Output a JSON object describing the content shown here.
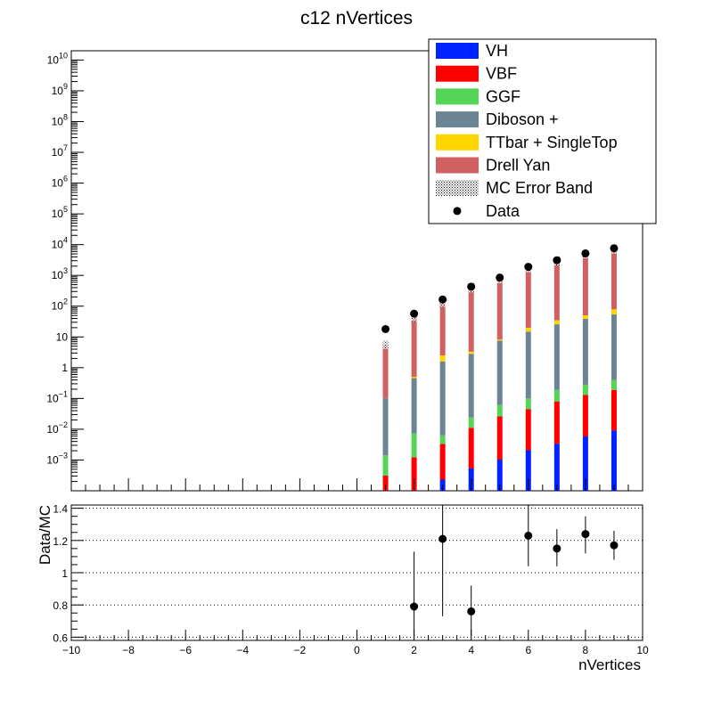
{
  "chart_data": [
    {
      "type": "bar",
      "stacked": true,
      "title": "c12 nVertices",
      "xlabel": "",
      "ylabel": "",
      "log_scale_y": true,
      "xlim": [
        -10,
        10
      ],
      "ylim": [
        0.0001,
        20000000000
      ],
      "x_ticks": [
        "−10",
        "−8",
        "−6",
        "−4",
        "−2",
        "0",
        "2",
        "4",
        "6",
        "8",
        "10"
      ],
      "y_ticks": [
        {
          "value": 0.001,
          "base": "10",
          "exp": "−3"
        },
        {
          "value": 0.01,
          "base": "10",
          "exp": "−2"
        },
        {
          "value": 0.1,
          "base": "10",
          "exp": "−1"
        },
        {
          "value": 1,
          "base": "1",
          "exp": ""
        },
        {
          "value": 10,
          "base": "10",
          "exp": ""
        },
        {
          "value": 100,
          "base": "10",
          "exp": "2"
        },
        {
          "value": 1000,
          "base": "10",
          "exp": "3"
        },
        {
          "value": 10000,
          "base": "10",
          "exp": "4"
        },
        {
          "value": 100000,
          "base": "10",
          "exp": "5"
        },
        {
          "value": 1000000,
          "base": "10",
          "exp": "6"
        },
        {
          "value": 10000000,
          "base": "10",
          "exp": "7"
        },
        {
          "value": 100000000,
          "base": "10",
          "exp": "8"
        },
        {
          "value": 1000000000,
          "base": "10",
          "exp": "9"
        },
        {
          "value": 10000000000,
          "base": "10",
          "exp": "10"
        }
      ],
      "x": [
        1,
        2,
        3,
        4,
        5,
        6,
        7,
        8,
        9
      ],
      "series": [
        {
          "name": "VH",
          "color": "#0022ff",
          "values": [
            1e-05,
            2e-05,
            0.00023,
            0.00053,
            0.00103,
            0.00208,
            0.00339,
            0.00582,
            0.00916
          ]
        },
        {
          "name": "VBF",
          "color": "#ff0000",
          "values": [
            0.0003,
            0.0012,
            0.0031,
            0.0105,
            0.0253,
            0.0429,
            0.0766,
            0.1242,
            0.1808
          ]
        },
        {
          "name": "GGF",
          "color": "#55d555",
          "values": [
            0.0011,
            0.006,
            0.003,
            0.013,
            0.035,
            0.055,
            0.11,
            0.15,
            0.21
          ]
        },
        {
          "name": "Diboson +",
          "color": "#6b8595",
          "values": [
            0.1,
            0.45,
            1.6,
            2.8,
            7.5,
            14.8,
            25.5,
            38.3,
            53.4
          ]
        },
        {
          "name": "TTbar + SingleTop",
          "color": "#ffd500",
          "values": [
            0.0,
            0.05,
            0.9,
            0.5,
            0.7,
            5.0,
            9.0,
            12.0,
            25.0
          ]
        },
        {
          "name": "Drell Yan",
          "color": "#d16060",
          "values": [
            5.5,
            45,
            130,
            390,
            760,
            1730,
            2900,
            4900,
            7000
          ]
        }
      ],
      "data": {
        "name": "Data",
        "values": [
          18,
          57,
          165,
          430,
          850,
          1900,
          3100,
          5200,
          7600
        ]
      },
      "error_band": {
        "name": "MC Error Band"
      },
      "legend_position": "top-right"
    },
    {
      "type": "scatter",
      "title": "",
      "xlabel": "nVertices",
      "ylabel": "Data/MC",
      "xlim": [
        -10,
        10
      ],
      "ylim": [
        0.58,
        1.42
      ],
      "x_ticks": [
        "−10",
        "−8",
        "−6",
        "−4",
        "−2",
        "0",
        "2",
        "4",
        "6",
        "8",
        "10"
      ],
      "y_ticks": [
        "0.6",
        "0.8",
        "1",
        "1.2",
        "1.4"
      ],
      "grid": "horizontal",
      "points": [
        {
          "x": 2,
          "y": 0.79,
          "err_low": 0.2,
          "err_high": 0.34
        },
        {
          "x": 3,
          "y": 1.21,
          "err_low": 0.48,
          "err_high": 0.35
        },
        {
          "x": 4,
          "y": 0.76,
          "err_low": 0.15,
          "err_high": 0.16
        },
        {
          "x": 6,
          "y": 1.23,
          "err_low": 0.19,
          "err_high": 0.2
        },
        {
          "x": 7,
          "y": 1.15,
          "err_low": 0.11,
          "err_high": 0.12
        },
        {
          "x": 8,
          "y": 1.24,
          "err_low": 0.12,
          "err_high": 0.11
        },
        {
          "x": 9,
          "y": 1.17,
          "err_low": 0.09,
          "err_high": 0.09
        }
      ]
    }
  ]
}
